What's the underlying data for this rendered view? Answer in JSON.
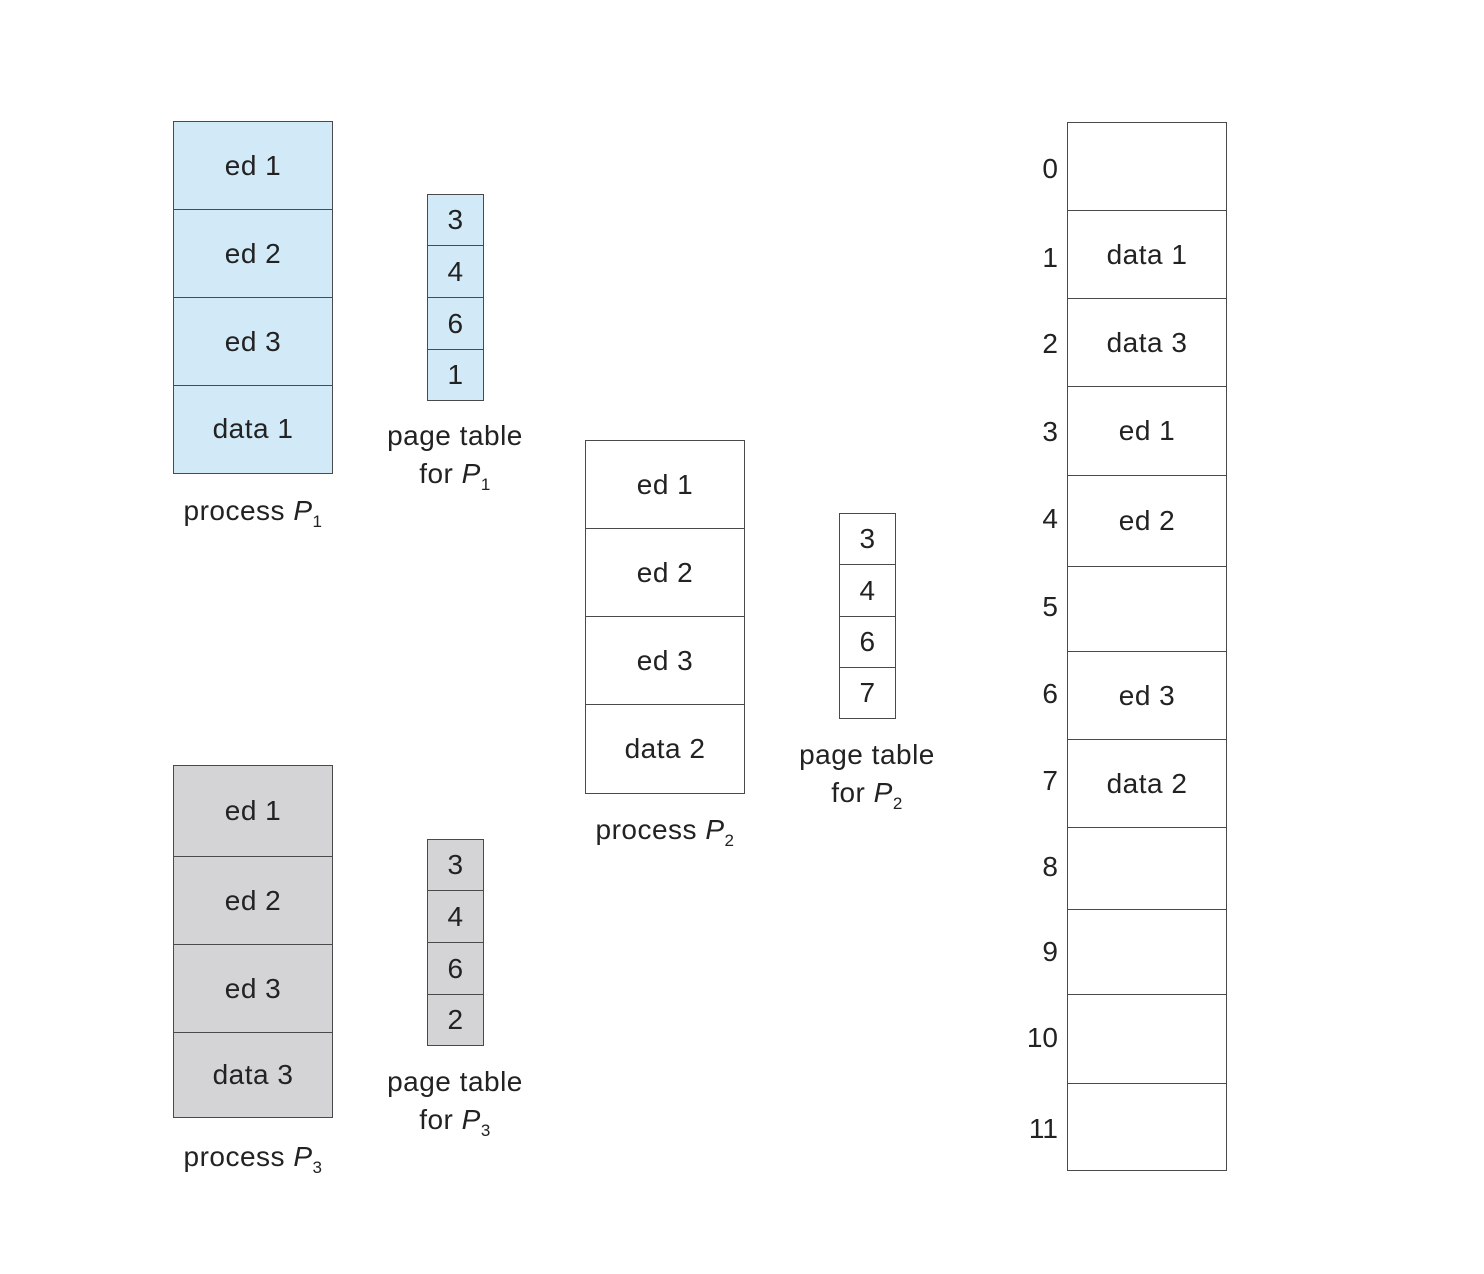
{
  "colors": {
    "p1_fill": "#d2eaf7",
    "p3_fill": "#d4d4d6",
    "p2_fill": "#ffffff",
    "border": "#4a4a4a"
  },
  "p1": {
    "pages": [
      "ed 1",
      "ed 2",
      "ed 3",
      "data 1"
    ],
    "label": "process",
    "label_var": "P",
    "label_sub": "1",
    "page_table": [
      "3",
      "4",
      "6",
      "1"
    ],
    "pt_label_line1": "page table",
    "pt_label_for": "for",
    "pt_var": "P",
    "pt_sub": "1"
  },
  "p2": {
    "pages": [
      "ed 1",
      "ed 2",
      "ed 3",
      "data 2"
    ],
    "label": "process",
    "label_var": "P",
    "label_sub": "2",
    "page_table": [
      "3",
      "4",
      "6",
      "7"
    ],
    "pt_label_line1": "page table",
    "pt_label_for": "for",
    "pt_var": "P",
    "pt_sub": "2"
  },
  "p3": {
    "pages": [
      "ed 1",
      "ed 2",
      "ed 3",
      "data 3"
    ],
    "label": "process",
    "label_var": "P",
    "label_sub": "3",
    "page_table": [
      "3",
      "4",
      "6",
      "2"
    ],
    "pt_label_line1": "page table",
    "pt_label_for": "for",
    "pt_var": "P",
    "pt_sub": "3"
  },
  "memory": {
    "frame_numbers": [
      "0",
      "1",
      "2",
      "3",
      "4",
      "5",
      "6",
      "7",
      "8",
      "9",
      "10",
      "11"
    ],
    "frames": [
      "",
      "data 1",
      "data 3",
      "ed 1",
      "ed 2",
      "",
      "ed 3",
      "data 2",
      "",
      "",
      "",
      ""
    ]
  }
}
